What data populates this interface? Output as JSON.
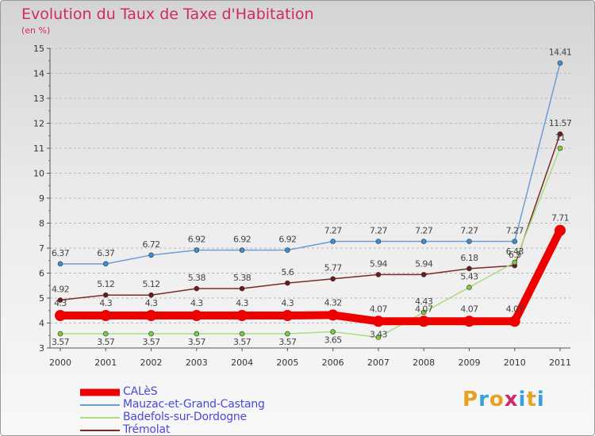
{
  "title": "Evolution du Taux de Taxe d'Habitation",
  "subtitle": "(en %)",
  "logo": {
    "text": "Proxiti",
    "colors": [
      "#e8a020",
      "#3aa0d8",
      "#e8a020",
      "#d0286a",
      "#3aa0d8",
      "#e8a020",
      "#3aa0d8"
    ]
  },
  "chart_data": {
    "type": "line",
    "title": "Evolution du Taux de Taxe d'Habitation",
    "ylabel": "(en %)",
    "x": [
      "2000",
      "2001",
      "2002",
      "2003",
      "2004",
      "2005",
      "2006",
      "2007",
      "2008",
      "2009",
      "2010",
      "2011"
    ],
    "ylim": [
      3,
      15
    ],
    "yticks": [
      3,
      4,
      5,
      6,
      7,
      8,
      9,
      10,
      11,
      12,
      13,
      14,
      15
    ],
    "grid": "horizontal dashed",
    "legend_position": "bottom-left",
    "series": [
      {
        "name": "CALèS",
        "color": "#ee0000",
        "width": 10,
        "values": [
          4.3,
          4.3,
          4.3,
          4.3,
          4.3,
          4.3,
          4.32,
          4.07,
          4.07,
          4.07,
          4.07,
          7.71
        ],
        "labels": [
          "4.3",
          "4.3",
          "4.3",
          "4.3",
          "4.3",
          "4.3",
          "4.32",
          "4.07",
          "4.07",
          "4.07",
          "4.07",
          "7.71"
        ]
      },
      {
        "name": "Mauzac-et-Grand-Castang",
        "color": "#6b9fd4",
        "width": 1.5,
        "values": [
          6.37,
          6.37,
          6.72,
          6.92,
          6.92,
          6.92,
          7.27,
          7.27,
          7.27,
          7.27,
          7.27,
          14.41
        ],
        "labels": [
          "6.37",
          "6.37",
          "6.72",
          "6.92",
          "6.92",
          "6.92",
          "7.27",
          "7.27",
          "7.27",
          "7.27",
          "7.27",
          "14.41"
        ]
      },
      {
        "name": "Badefols-sur-Dordogne",
        "color": "#a9dd7e",
        "width": 1.5,
        "values": [
          3.57,
          3.57,
          3.57,
          3.57,
          3.57,
          3.57,
          3.65,
          3.43,
          4.43,
          5.43,
          6.43,
          11
        ],
        "labels": [
          "3.57",
          "3.57",
          "3.57",
          "3.57",
          "3.57",
          "3.57",
          "3.65",
          "3.43",
          "4.43",
          "5.43",
          "6.43",
          "11"
        ]
      },
      {
        "name": "Trémolat",
        "color": "#7a2a2a",
        "width": 1.5,
        "values": [
          4.92,
          5.12,
          5.12,
          5.38,
          5.38,
          5.6,
          5.77,
          5.94,
          5.94,
          6.18,
          6.3,
          11.57
        ],
        "labels": [
          "4.92",
          "5.12",
          "5.12",
          "5.38",
          "5.38",
          "5.6",
          "5.77",
          "5.94",
          "5.94",
          "6.18",
          "6.3",
          "11.57"
        ]
      }
    ]
  }
}
